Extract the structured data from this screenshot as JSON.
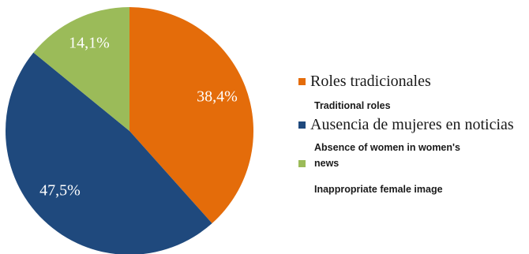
{
  "chart_data": {
    "type": "pie",
    "slices": [
      {
        "category": "Roles tradicionales",
        "value": 38.4,
        "label": "38,4%",
        "color": "#e46c0a"
      },
      {
        "category": "Ausencia de mujeres en noticias",
        "value": 47.5,
        "label": "47,5%",
        "color": "#1f497d"
      },
      {
        "category": "",
        "value": 14.1,
        "label": "14,1%",
        "color": "#9bbb59"
      }
    ],
    "legend": {
      "placement": "right",
      "entries": [
        "Roles tradicionales",
        "Ausencia de mujeres en noticias",
        ""
      ]
    },
    "english_labels": [
      "Traditional roles",
      "Absence of women in women's",
      "news",
      "Inappropriate female image"
    ]
  }
}
